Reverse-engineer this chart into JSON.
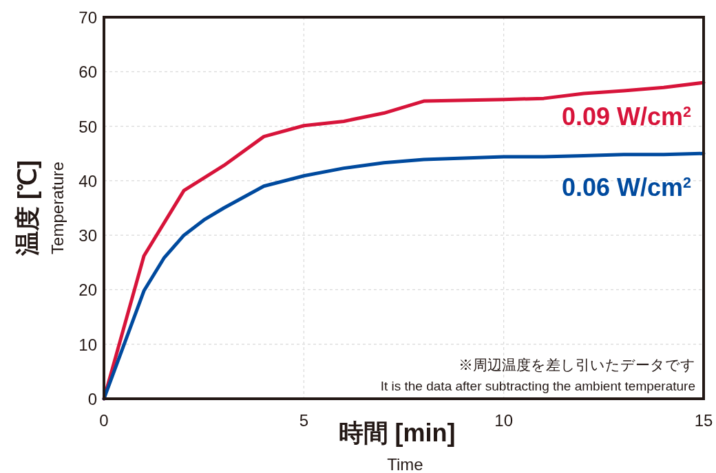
{
  "chart_data": {
    "type": "line",
    "xlabel": "時間 [min]\nTime",
    "ylabel": "温度 [℃]\nTemperature",
    "annotations": [
      "※周辺温度を差し引いたデータです",
      "It is the data after subtracting the ambient temperature"
    ],
    "xlim": [
      0,
      15
    ],
    "xticks": [
      0,
      5,
      10,
      15
    ],
    "ylim": [
      0,
      70
    ],
    "yticks": [
      0,
      10,
      20,
      30,
      40,
      50,
      60,
      70
    ],
    "grid": true,
    "legend": false,
    "marker": "none",
    "line_style": "solid",
    "series": [
      {
        "name": "0.09 W/cm$^{2}$",
        "color": "#d7143a",
        "x": [
          0,
          1,
          2,
          3,
          4,
          5,
          6,
          7,
          8,
          10,
          11,
          12,
          13,
          14,
          15
        ],
        "values": [
          0,
          26.2,
          38.2,
          42.8,
          48.1,
          50.1,
          50.9,
          52.4,
          54.6,
          54.9,
          55.1,
          56,
          56.5,
          57.1,
          58
        ]
      },
      {
        "name": "0.06 W/cm$^{2}$",
        "color": "#004a9e",
        "x": [
          0,
          1,
          1.5,
          2,
          2.5,
          3,
          4,
          5,
          6,
          7,
          8,
          10,
          11,
          12,
          13,
          14,
          15
        ],
        "values": [
          0,
          19.8,
          25.8,
          30,
          32.8,
          35,
          39,
          40.9,
          42.3,
          43.3,
          43.9,
          44.4,
          44.4,
          44.6,
          44.8,
          44.8,
          45
        ]
      }
    ]
  }
}
